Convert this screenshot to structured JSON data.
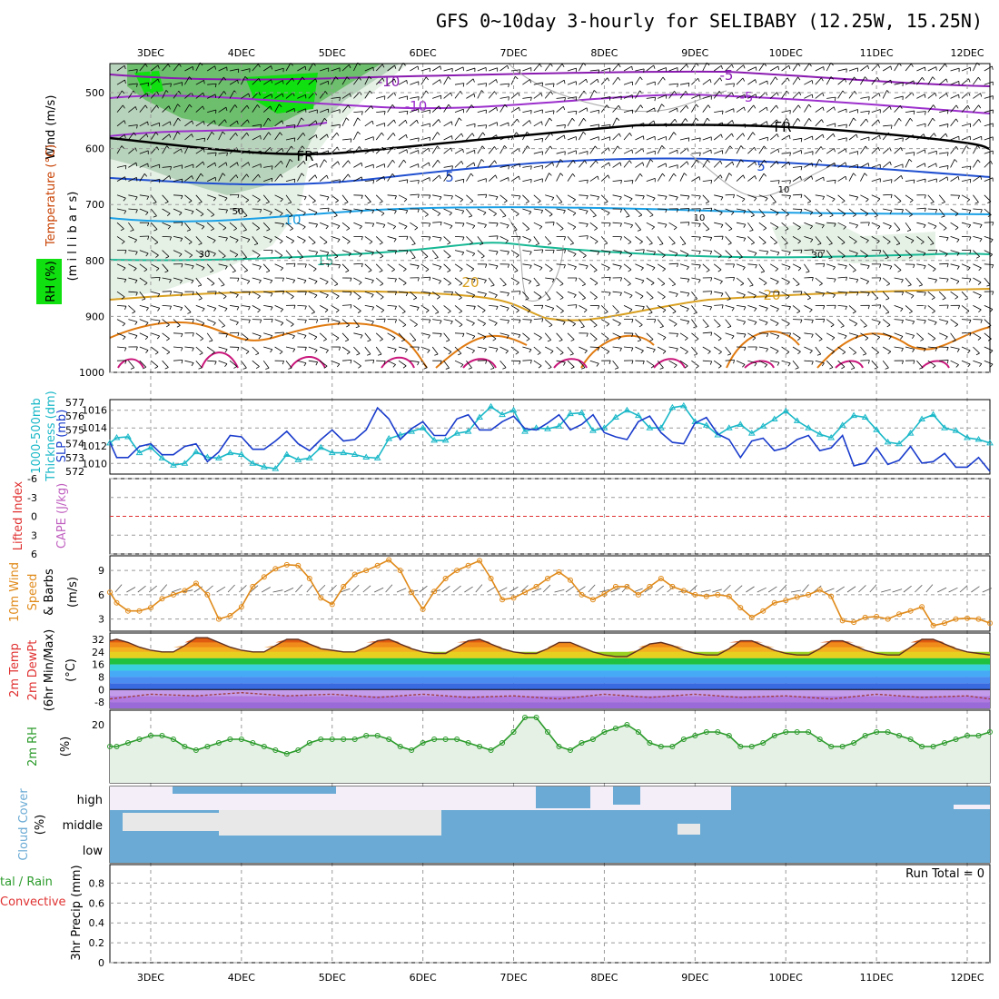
{
  "title": "GFS 0~10day 3-hourly for SELIBABY (12.25W, 15.25N)",
  "run_total": "Run Total = 0",
  "colors": {
    "rh_fill_light": "#e6f1e6",
    "rh_fill_mid": "#b8d3bb",
    "rh_fill_dark": "#6dbf6d",
    "rh_fill_max": "#10e010",
    "t_m10": "#8a1bb0",
    "t_m5": "#9c2fcc",
    "t_fr": "#000000",
    "t_5": "#1f4fd0",
    "t_10": "#1aa0e6",
    "t_15": "#16b894",
    "t_20": "#d9a020",
    "t_25": "#e07a10",
    "t_30": "#c8157a",
    "thickness": "#1a3ccc",
    "slp": "#1ab8c8",
    "lifted_index": "#e03030",
    "wind10": "#e08a1a",
    "rh2m": "#2a9a2a",
    "cloud": "#6aaad4"
  },
  "panels": {
    "upper_air": {
      "ylabel_wind": "Wind (m/s)",
      "ylabel_temp": "Temperature (°C)",
      "ylabel_rh": "RH (%)",
      "ylabel_mb": "(m i l l i b a r s)",
      "pressure_ticks": [
        "500",
        "600",
        "700",
        "800",
        "900",
        "1000"
      ],
      "contour_labels": [
        "-10",
        "-5",
        "-10",
        "-5",
        "FR",
        "FR",
        "5",
        "5",
        "10",
        "15",
        "20",
        "20",
        "30",
        "30",
        "10",
        "50",
        "10"
      ]
    },
    "thickness_slp": {
      "ylabel_thick": "1000-500mb",
      "ylabel_thick2": "Thickness (dm)",
      "ylabel_slp": "SLP (mb)",
      "thick_ticks": [
        "577",
        "576",
        "575",
        "574",
        "573",
        "572"
      ],
      "slp_ticks": [
        "1016",
        "1014",
        "1012",
        "1010"
      ]
    },
    "cape_li": {
      "ylabel_li": "Lifted Index",
      "ylabel_cape": "CAPE (J/kg)",
      "ticks": [
        "-6",
        "-3",
        "0",
        "3",
        "6"
      ]
    },
    "wind10m": {
      "ylabel1": "10m Wind",
      "ylabel2": "Speed",
      "ylabel3": "& Barbs",
      "unit": "(m/s)",
      "ticks": [
        "9",
        "6",
        "3"
      ]
    },
    "temp2m": {
      "ylabel1": "2m Temp",
      "ylabel2": "2m DewPt",
      "ylabel3": "(6hr Min/Max)",
      "unit": "(°C)",
      "ticks": [
        "32",
        "24",
        "16",
        "8",
        "0",
        "-8"
      ]
    },
    "rh2m": {
      "ylabel": "2m RH",
      "unit": "(%)",
      "ticks": [
        "20"
      ]
    },
    "cloud": {
      "ylabel": "Cloud Cover",
      "unit": "(%)",
      "levels": [
        "high",
        "middle",
        "low"
      ]
    },
    "precip": {
      "ylabel1": "tal / Rain",
      "ylabel2": "Convective",
      "ylabel3": "3hr Precip (mm)",
      "ticks": [
        "0.8",
        "0.6",
        "0.4",
        "0.2",
        "0"
      ]
    }
  },
  "chart_data": [
    {
      "type": "line",
      "title": "GFS 0~10day 3-hourly for SELIBABY (12.25W, 15.25N)",
      "panel": "thickness_slp",
      "xlabel": "",
      "categories": [
        "3DEC",
        "4DEC",
        "5DEC",
        "6DEC",
        "7DEC",
        "8DEC",
        "9DEC",
        "10DEC",
        "11DEC",
        "12DEC"
      ],
      "x_range_days": [
        2.55,
        12.25
      ],
      "series": [
        {
          "name": "1000-500mb Thickness (dm)",
          "ylabel": "Thickness (dm)",
          "ylim": [
            571.8,
            577.2
          ],
          "x": [
            2.5,
            2.625,
            2.75,
            2.875,
            3.0,
            3.125,
            3.25,
            3.375,
            3.5,
            3.625,
            3.75,
            3.875,
            4.0,
            4.125,
            4.25,
            4.375,
            4.5,
            4.625,
            4.75,
            4.875,
            5.0,
            5.125,
            5.25,
            5.375,
            5.5,
            5.625,
            5.75,
            5.875,
            6.0,
            6.125,
            6.25,
            6.375,
            6.5,
            6.625,
            6.75,
            6.875,
            7.0,
            7.125,
            7.25,
            7.375,
            7.5,
            7.625,
            7.75,
            7.875,
            8.0,
            8.125,
            8.25,
            8.375,
            8.5,
            8.625,
            8.75,
            8.875,
            9.0,
            9.125,
            9.25,
            9.375,
            9.5,
            9.625,
            9.75,
            9.875,
            10.0,
            10.125,
            10.25,
            10.375,
            10.5,
            10.625,
            10.75,
            10.875,
            11.0,
            11.125,
            11.25,
            11.375,
            11.5,
            11.625,
            11.75,
            11.875,
            12.0,
            12.125,
            12.25
          ],
          "values": [
            574.1,
            573.0,
            573.0,
            573.8,
            574.0,
            573.2,
            573.2,
            573.8,
            574.0,
            572.7,
            573.4,
            574.6,
            574.5,
            573.6,
            573.6,
            574.2,
            574.9,
            574.0,
            573.5,
            574.3,
            575.0,
            574.2,
            574.3,
            575.0,
            576.6,
            575.8,
            574.3,
            575.1,
            575.6,
            574.6,
            574.6,
            575.8,
            576.1,
            575.0,
            575.0,
            575.6,
            576.0,
            575.1,
            575.0,
            575.5,
            576.1,
            575.0,
            575.4,
            576.1,
            574.8,
            574.5,
            574.3,
            575.6,
            576.0,
            574.8,
            574.1,
            574.0,
            575.5,
            575.9,
            574.7,
            574.3,
            573.0,
            574.2,
            574.4,
            573.5,
            573.7,
            574.3,
            574.6,
            573.5,
            573.7,
            574.6,
            572.4,
            572.6,
            573.7,
            572.5,
            572.8,
            573.8,
            572.6,
            572.7,
            573.3,
            572.3,
            572.3,
            573.0,
            572.0
          ]
        },
        {
          "name": "SLP (mb)",
          "ylabel": "SLP (mb)",
          "ylim": [
            1008.8,
            1017.2
          ],
          "x": [
            2.5,
            2.625,
            2.75,
            2.875,
            3.0,
            3.125,
            3.25,
            3.375,
            3.5,
            3.625,
            3.75,
            3.875,
            4.0,
            4.125,
            4.25,
            4.375,
            4.5,
            4.625,
            4.75,
            4.875,
            5.0,
            5.125,
            5.25,
            5.375,
            5.5,
            5.625,
            5.75,
            5.875,
            6.0,
            6.125,
            6.25,
            6.375,
            6.5,
            6.625,
            6.75,
            6.875,
            7.0,
            7.125,
            7.25,
            7.375,
            7.5,
            7.625,
            7.75,
            7.875,
            8.0,
            8.125,
            8.25,
            8.375,
            8.5,
            8.625,
            8.75,
            8.875,
            9.0,
            9.125,
            9.25,
            9.375,
            9.5,
            9.625,
            9.75,
            9.875,
            10.0,
            10.125,
            10.25,
            10.375,
            10.5,
            10.625,
            10.75,
            10.875,
            11.0,
            11.125,
            11.25,
            11.375,
            11.5,
            11.625,
            11.75,
            11.875,
            12.0,
            12.125,
            12.25
          ],
          "values": [
            1012.3,
            1012.9,
            1013.0,
            1011.2,
            1011.8,
            1010.6,
            1009.8,
            1010.0,
            1011.3,
            1010.7,
            1010.6,
            1011.2,
            1011.0,
            1010.0,
            1009.6,
            1009.4,
            1011.0,
            1010.4,
            1010.6,
            1011.8,
            1011.2,
            1011.2,
            1011.0,
            1010.7,
            1010.6,
            1012.8,
            1013.2,
            1013.6,
            1014.0,
            1012.6,
            1012.6,
            1013.4,
            1013.6,
            1015.2,
            1016.4,
            1015.5,
            1016.0,
            1013.6,
            1014.0,
            1013.9,
            1014.2,
            1015.6,
            1015.7,
            1013.7,
            1014.0,
            1015.2,
            1016.0,
            1015.4,
            1014.0,
            1014.0,
            1016.3,
            1016.5,
            1014.7,
            1014.3,
            1013.2,
            1014.0,
            1014.4,
            1013.4,
            1014.2,
            1015.0,
            1015.9,
            1014.8,
            1014.0,
            1013.3,
            1012.9,
            1014.3,
            1015.4,
            1015.2,
            1013.8,
            1012.4,
            1012.2,
            1013.4,
            1015.0,
            1015.5,
            1014.0,
            1013.7,
            1012.9,
            1012.7,
            1012.3
          ]
        }
      ]
    },
    {
      "type": "line",
      "panel": "wind10m",
      "title": "",
      "xlabel": "",
      "ylabel": "10m Wind Speed & Barbs (m/s)",
      "ylim": [
        1.5,
        10.8
      ],
      "series": [
        {
          "name": "10m Wind Speed",
          "x": [
            2.5,
            2.625,
            2.75,
            2.875,
            3.0,
            3.125,
            3.25,
            3.375,
            3.5,
            3.625,
            3.75,
            3.875,
            4.0,
            4.125,
            4.25,
            4.375,
            4.5,
            4.625,
            4.75,
            4.875,
            5.0,
            5.125,
            5.25,
            5.375,
            5.5,
            5.625,
            5.75,
            5.875,
            6.0,
            6.125,
            6.25,
            6.375,
            6.5,
            6.625,
            6.75,
            6.875,
            7.0,
            7.125,
            7.25,
            7.375,
            7.5,
            7.625,
            7.75,
            7.875,
            8.0,
            8.125,
            8.25,
            8.375,
            8.5,
            8.625,
            8.75,
            8.875,
            9.0,
            9.125,
            9.25,
            9.375,
            9.5,
            9.625,
            9.75,
            9.875,
            10.0,
            10.125,
            10.25,
            10.375,
            10.5,
            10.625,
            10.75,
            10.875,
            11.0,
            11.125,
            11.25,
            11.375,
            11.5,
            11.625,
            11.75,
            11.875,
            12.0,
            12.125,
            12.25
          ],
          "values": [
            6.3,
            5.0,
            4.0,
            4.0,
            4.4,
            5.5,
            6.0,
            6.5,
            7.4,
            6.0,
            3.0,
            3.4,
            4.5,
            7.0,
            8.2,
            9.2,
            9.7,
            9.6,
            8.0,
            5.6,
            4.8,
            7.0,
            8.5,
            9.0,
            9.6,
            10.3,
            9.0,
            6.3,
            4.2,
            6.4,
            8.0,
            9.0,
            9.6,
            10.2,
            8.0,
            5.4,
            5.6,
            6.3,
            7.0,
            8.0,
            8.8,
            7.8,
            6.0,
            5.4,
            6.1,
            7.0,
            7.0,
            6.0,
            7.0,
            8.0,
            7.0,
            6.5,
            6.0,
            5.8,
            6.0,
            5.8,
            4.4,
            3.2,
            4.0,
            5.0,
            5.3,
            5.7,
            6.0,
            6.6,
            5.8,
            2.8,
            2.6,
            3.2,
            3.3,
            3.0,
            3.6,
            4.0,
            4.5,
            2.2,
            2.5,
            3.0,
            3.1,
            3.0,
            2.5
          ]
        }
      ]
    },
    {
      "type": "area",
      "panel": "temp2m",
      "title": "",
      "xlabel": "",
      "ylabel": "2m Temp / 2m DewPt (6hr Min/Max) (°C)",
      "ylim": [
        -12,
        36
      ],
      "series": [
        {
          "name": "2m Temp",
          "x": [
            2.5,
            2.625,
            2.75,
            2.875,
            3.0,
            3.125,
            3.25,
            3.375,
            3.5,
            3.625,
            3.75,
            3.875,
            4.0,
            4.125,
            4.25,
            4.375,
            4.5,
            4.625,
            4.75,
            4.875,
            5.0,
            5.125,
            5.25,
            5.375,
            5.5,
            5.625,
            5.75,
            5.875,
            6.0,
            6.125,
            6.25,
            6.375,
            6.5,
            6.625,
            6.75,
            6.875,
            7.0,
            7.125,
            7.25,
            7.375,
            7.5,
            7.625,
            7.75,
            7.875,
            8.0,
            8.125,
            8.25,
            8.375,
            8.5,
            8.625,
            8.75,
            8.875,
            9.0,
            9.125,
            9.25,
            9.375,
            9.5,
            9.625,
            9.75,
            9.875,
            10.0,
            10.125,
            10.25,
            10.375,
            10.5,
            10.625,
            10.75,
            10.875,
            11.0,
            11.125,
            11.25,
            11.375,
            11.5,
            11.625,
            11.75,
            11.875,
            12.0,
            12.125,
            12.25
          ],
          "values": [
            31,
            32,
            30,
            27,
            25,
            24,
            24,
            28,
            33,
            33,
            30,
            27,
            25,
            24,
            24,
            28,
            32,
            32,
            29,
            26,
            25,
            24,
            24,
            27,
            31,
            32,
            29,
            26,
            24,
            23,
            23,
            27,
            31,
            32,
            29,
            26,
            24,
            23,
            23,
            26,
            30,
            30,
            27,
            24,
            22,
            21,
            21,
            25,
            29,
            30,
            28,
            25,
            23,
            22,
            22,
            26,
            31,
            31,
            28,
            25,
            23,
            22,
            22,
            26,
            31,
            31,
            28,
            25,
            23,
            22,
            22,
            27,
            32,
            32,
            29,
            26,
            24,
            23,
            22
          ]
        },
        {
          "name": "2m DewPt",
          "x": [
            2.5,
            3.0,
            3.5,
            4.0,
            4.5,
            5.0,
            5.5,
            6.0,
            6.5,
            7.0,
            7.5,
            8.0,
            8.5,
            9.0,
            9.5,
            10.0,
            10.5,
            11.0,
            11.5,
            12.0,
            12.25
          ],
          "values": [
            -6,
            -3,
            -4,
            -2,
            -4,
            -3,
            -5,
            -3,
            -5,
            -4,
            -6,
            -3,
            -5,
            -3,
            -5,
            -4,
            -6,
            -3,
            -5,
            -4,
            -6
          ]
        }
      ]
    },
    {
      "type": "area",
      "panel": "rh2m",
      "title": "",
      "xlabel": "",
      "ylabel": "2m RH (%)",
      "ylim": [
        4,
        24
      ],
      "series": [
        {
          "name": "2m RH",
          "x": [
            2.5,
            2.625,
            2.75,
            2.875,
            3.0,
            3.125,
            3.25,
            3.375,
            3.5,
            3.625,
            3.75,
            3.875,
            4.0,
            4.125,
            4.25,
            4.375,
            4.5,
            4.625,
            4.75,
            4.875,
            5.0,
            5.125,
            5.25,
            5.375,
            5.5,
            5.625,
            5.75,
            5.875,
            6.0,
            6.125,
            6.25,
            6.375,
            6.5,
            6.625,
            6.75,
            6.875,
            7.0,
            7.125,
            7.25,
            7.375,
            7.5,
            7.625,
            7.75,
            7.875,
            8.0,
            8.125,
            8.25,
            8.375,
            8.5,
            8.625,
            8.75,
            8.875,
            9.0,
            9.125,
            9.25,
            9.375,
            9.5,
            9.625,
            9.75,
            9.875,
            10.0,
            10.125,
            10.25,
            10.375,
            10.5,
            10.625,
            10.75,
            10.875,
            11.0,
            11.125,
            11.25,
            11.375,
            11.5,
            11.625,
            11.75,
            11.875,
            12.0,
            12.125,
            12.25
          ],
          "values": [
            14,
            14,
            15,
            16,
            17,
            17,
            16,
            14,
            13,
            14,
            15,
            16,
            16,
            15,
            14,
            13,
            12,
            13,
            15,
            16,
            16,
            16,
            16,
            17,
            17,
            16,
            14,
            13,
            15,
            16,
            16,
            16,
            15,
            14,
            13,
            15,
            18,
            22,
            22,
            18,
            14,
            13,
            15,
            16,
            18,
            19,
            20,
            18,
            15,
            14,
            14,
            16,
            17,
            18,
            18,
            17,
            14,
            14,
            15,
            17,
            18,
            18,
            18,
            16,
            14,
            14,
            15,
            17,
            18,
            18,
            17,
            16,
            14,
            14,
            15,
            16,
            17,
            17,
            18
          ]
        }
      ]
    }
  ]
}
